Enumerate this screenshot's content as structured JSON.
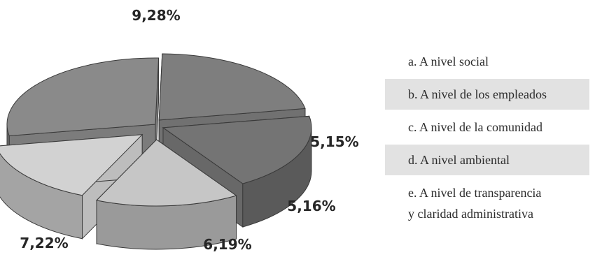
{
  "chart_data": {
    "type": "pie",
    "style": "3d-exploded",
    "categories": [
      "a. A nivel social",
      "b. A nivel de los empleados",
      "c. A nivel de la comunidad",
      "d. A nivel ambiental",
      "e. A nivel de transparencia y claridad administrativa"
    ],
    "values": [
      9.28,
      7.22,
      6.19,
      5.16,
      5.15
    ],
    "labels": [
      "9,28%",
      "7,22%",
      "6,19%",
      "5,16%",
      "5,15%"
    ],
    "colors": [
      "#8a8a8a",
      "#7e7e7e",
      "#747474",
      "#c6c6c6",
      "#d2d2d2"
    ],
    "legend_placement": "right",
    "legend": [
      {
        "lines": [
          "a. A nivel social"
        ]
      },
      {
        "lines": [
          "b. A nivel de los empleados"
        ]
      },
      {
        "lines": [
          "c. A nivel de la comunidad"
        ]
      },
      {
        "lines": [
          "d. A nivel ambiental"
        ]
      },
      {
        "lines": [
          "e. A nivel de transparencia",
          "y claridad administrativa"
        ]
      }
    ]
  }
}
